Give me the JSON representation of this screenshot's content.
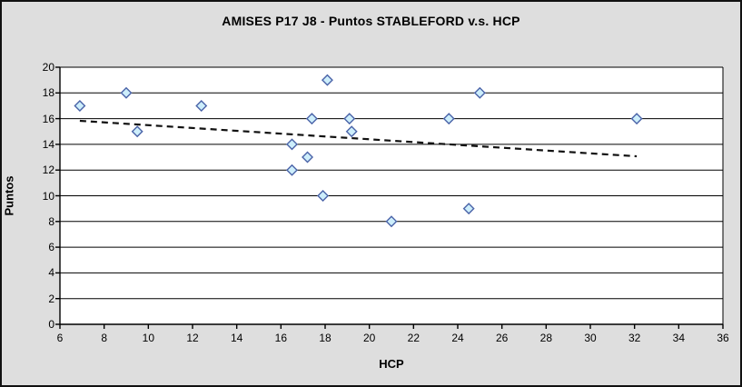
{
  "chart_data": {
    "type": "scatter",
    "title": "AMISES P17 J8 - Puntos STABLEFORD v.s. HCP",
    "xlabel": "HCP",
    "ylabel": "Puntos",
    "xlim": [
      6,
      36
    ],
    "ylim": [
      0,
      20
    ],
    "x_tick_step": 2,
    "y_tick_step": 2,
    "grid": "horizontal-only",
    "legend": "none",
    "points": [
      [
        6.9,
        17
      ],
      [
        9.0,
        18
      ],
      [
        9.5,
        15
      ],
      [
        12.4,
        17
      ],
      [
        16.5,
        14
      ],
      [
        16.5,
        12
      ],
      [
        17.2,
        13
      ],
      [
        17.4,
        16
      ],
      [
        17.9,
        10
      ],
      [
        18.1,
        19
      ],
      [
        19.1,
        16
      ],
      [
        19.2,
        15
      ],
      [
        21.0,
        8
      ],
      [
        23.6,
        16
      ],
      [
        24.5,
        9
      ],
      [
        25.0,
        18
      ],
      [
        32.1,
        16
      ]
    ],
    "trendline": {
      "style": "dashed",
      "color": "#111111",
      "x1": 6.9,
      "y1": 15.83,
      "x2": 32.1,
      "y2": 13.07
    },
    "marker": {
      "shape": "diamond",
      "fill": "#cdeefb",
      "stroke": "#4a63a8",
      "size": 11
    },
    "colors": {
      "chart_background": "#dedede",
      "plot_background": "#ffffff",
      "gridline": "#000000",
      "axis": "#000000",
      "outer_border": "#111111"
    }
  }
}
